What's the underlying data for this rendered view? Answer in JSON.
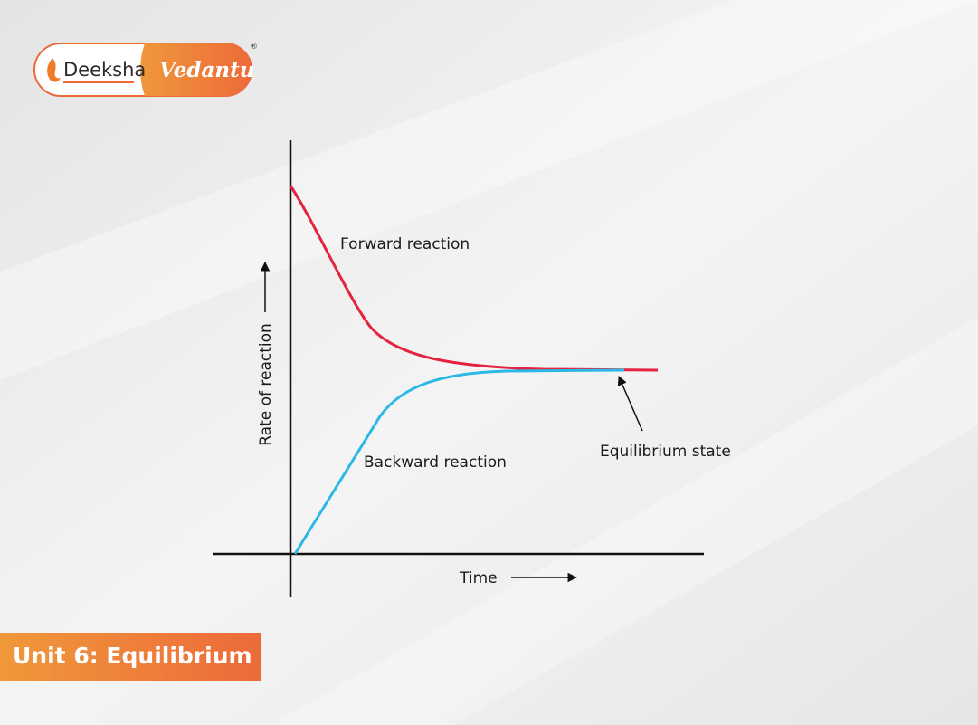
{
  "logo": {
    "brand": "Deeksha",
    "partner": "Vedantu",
    "mark": "®"
  },
  "diagram": {
    "y_axis_label": "Rate of reaction",
    "x_axis_label": "Time",
    "curves": [
      {
        "label": "Forward reaction"
      },
      {
        "label": "Backward reaction"
      }
    ],
    "annotation": "Equilibrium state"
  },
  "footer": {
    "title": "Unit 6: Equilibrium"
  }
}
